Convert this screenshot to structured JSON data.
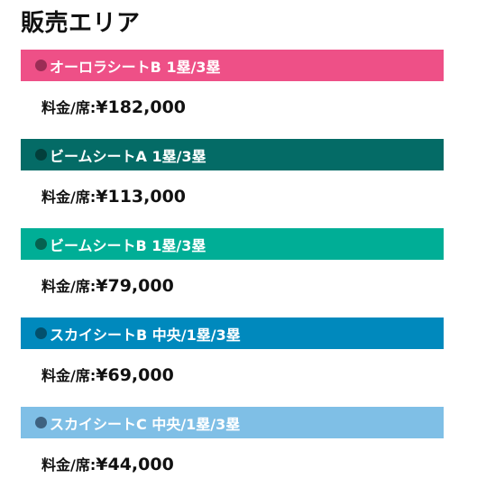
{
  "page": {
    "title": "販売エリア"
  },
  "areas": [
    {
      "name": "オーロラシートB 1塁/3塁",
      "header_color": "#ee5087",
      "dot_color": "#9b2d55",
      "price_label": "料金/席:",
      "price": "¥182,000"
    },
    {
      "name": "ビームシートA 1塁/3塁",
      "header_color": "#046b66",
      "dot_color": "#033f3b",
      "price_label": "料金/席:",
      "price": "¥113,000"
    },
    {
      "name": "ビームシートB 1塁/3塁",
      "header_color": "#00ae96",
      "dot_color": "#06614f",
      "price_label": "料金/席:",
      "price": "¥79,000"
    },
    {
      "name": "スカイシートB 中央/1塁/3塁",
      "header_color": "#0089bd",
      "dot_color": "#03506d",
      "price_label": "料金/席:",
      "price": "¥69,000"
    },
    {
      "name": "スカイシートC 中央/1塁/3塁",
      "header_color": "#7fbfe6",
      "dot_color": "#3e6280",
      "price_label": "料金/席:",
      "price": "¥44,000"
    }
  ]
}
